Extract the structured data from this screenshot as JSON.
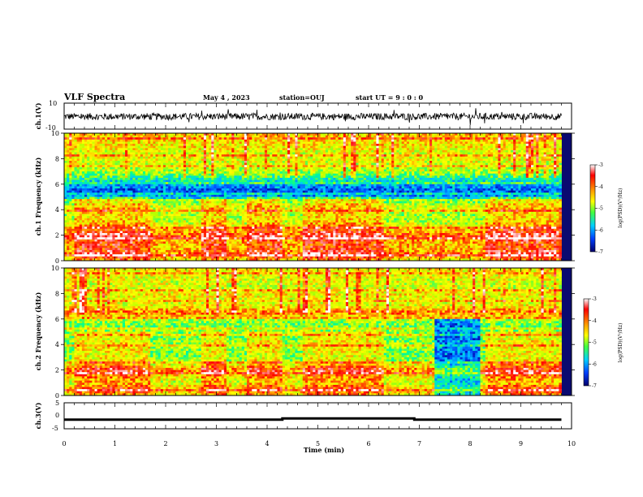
{
  "header": {
    "title": "VLF Spectra",
    "date": "May 4 , 2023",
    "station": "station=OUJ",
    "start": "start  UT =   9 : 0 : 0"
  },
  "colors": {
    "background": "#ffffff",
    "trace": "#000000",
    "colormap": [
      "#0000a0",
      "#0050ff",
      "#00c8ff",
      "#00ff90",
      "#b4ff00",
      "#ffff00",
      "#ff8000",
      "#ff0000",
      "#ffffff"
    ]
  },
  "chart_data": [
    {
      "type": "line",
      "panel": "ch1-waveform",
      "ylabel": "ch.1(V)",
      "yticks": [
        "10",
        "-10"
      ],
      "ylim": [
        -10,
        10
      ],
      "xlim": [
        0,
        10
      ],
      "data_extent_min": [
        0,
        9.8
      ],
      "description_values": {
        "mean": 0,
        "amplitude_approx": 1.2
      }
    },
    {
      "type": "heatmap",
      "panel": "ch1-spectrogram",
      "ylabel": "ch.1\nFrequency (kHz)",
      "yticks": [
        "0",
        "2",
        "4",
        "6",
        "8",
        "10"
      ],
      "ylim": [
        0,
        10
      ],
      "xlim": [
        0,
        10
      ],
      "data_extent_min": [
        0,
        9.8
      ],
      "colorbar": {
        "label": "log(PSD)(V²/Hz)",
        "ticks": [
          "-3",
          "-4",
          "-5",
          "-6",
          "-7"
        ],
        "range": [
          -7,
          -3
        ]
      },
      "frequency_profile_kHz": [
        [
          0,
          -4.6
        ],
        [
          0.5,
          -3.9
        ],
        [
          1.0,
          -4.3
        ],
        [
          1.5,
          -4.2
        ],
        [
          2.0,
          -3.8
        ],
        [
          2.5,
          -4.4
        ],
        [
          3.0,
          -4.8
        ],
        [
          3.5,
          -5.0
        ],
        [
          4.0,
          -4.7
        ],
        [
          4.5,
          -4.9
        ],
        [
          5.0,
          -6.1
        ],
        [
          5.5,
          -6.5
        ],
        [
          6.0,
          -6.0
        ],
        [
          6.5,
          -5.5
        ],
        [
          7.0,
          -4.9
        ],
        [
          7.5,
          -4.8
        ],
        [
          8.0,
          -4.6
        ],
        [
          8.5,
          -4.7
        ],
        [
          9.0,
          -4.5
        ],
        [
          9.5,
          -4.4
        ],
        [
          10.0,
          -4.3
        ]
      ],
      "enhanced_segments_min": [
        [
          0.2,
          1.7
        ],
        [
          2.7,
          3.2
        ],
        [
          3.6,
          4.3
        ],
        [
          4.7,
          6.3
        ],
        [
          8.3,
          9.8
        ]
      ]
    },
    {
      "type": "heatmap",
      "panel": "ch2-spectrogram",
      "ylabel": "ch.2\nFrequency (kHz)",
      "yticks": [
        "0",
        "2",
        "4",
        "6",
        "8",
        "10"
      ],
      "ylim": [
        0,
        10
      ],
      "xlim": [
        0,
        10
      ],
      "data_extent_min": [
        0,
        9.8
      ],
      "colorbar": {
        "label": "log(PSD)(V²/Hz)",
        "ticks": [
          "-3",
          "-4",
          "-5",
          "-6",
          "-7"
        ],
        "range": [
          -7,
          -3
        ]
      },
      "frequency_profile_kHz": [
        [
          0,
          -4.6
        ],
        [
          0.5,
          -4.2
        ],
        [
          1.0,
          -4.8
        ],
        [
          1.5,
          -4.5
        ],
        [
          2.0,
          -4.0
        ],
        [
          2.5,
          -4.8
        ],
        [
          3.0,
          -5.2
        ],
        [
          3.5,
          -5.1
        ],
        [
          4.0,
          -5.0
        ],
        [
          4.5,
          -5.2
        ],
        [
          5.0,
          -5.0
        ],
        [
          5.5,
          -5.2
        ],
        [
          6.0,
          -4.8
        ],
        [
          6.5,
          -3.9
        ],
        [
          7.0,
          -4.6
        ],
        [
          7.5,
          -4.7
        ],
        [
          8.0,
          -4.5
        ],
        [
          8.5,
          -4.8
        ],
        [
          9.0,
          -4.7
        ],
        [
          9.5,
          -4.6
        ],
        [
          10.0,
          -4.5
        ]
      ],
      "enhanced_segments_min": [
        [
          0.2,
          1.7
        ],
        [
          2.7,
          3.2
        ],
        [
          3.6,
          4.3
        ],
        [
          4.7,
          6.3
        ],
        [
          8.3,
          9.8
        ]
      ],
      "dark_region_min": [
        7.3,
        8.2
      ]
    },
    {
      "type": "line",
      "panel": "ch3-signal",
      "ylabel": "ch.3(V)",
      "yticks": [
        "5",
        "0",
        "-5"
      ],
      "ylim": [
        -5,
        5
      ],
      "xlim": [
        0,
        10
      ],
      "xlabel": "Time (min)",
      "xticks": [
        "0",
        "1",
        "2",
        "3",
        "4",
        "5",
        "6",
        "7",
        "8",
        "9",
        "10"
      ],
      "x": [
        0,
        4.3,
        4.3,
        6.9,
        6.9,
        9.8
      ],
      "y": [
        -1.5,
        -1.5,
        -1.0,
        -1.0,
        -1.5,
        -1.5
      ]
    }
  ]
}
